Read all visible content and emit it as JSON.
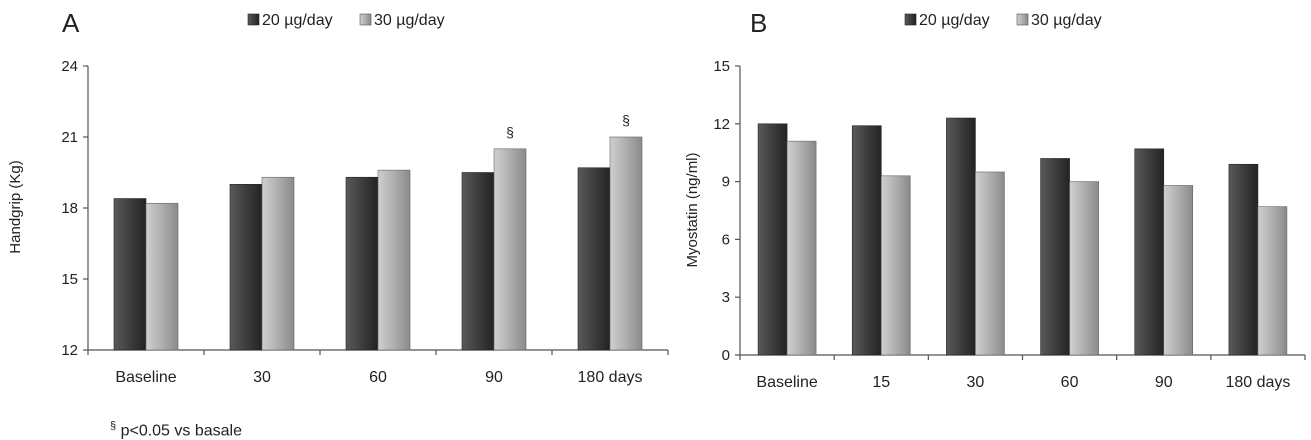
{
  "footnote": {
    "symbol": "§",
    "text": " p<0.05 vs basale"
  },
  "chart_data": [
    {
      "type": "bar",
      "panel_label": "A",
      "categories": [
        "Baseline",
        "30",
        "60",
        "90",
        "180 days"
      ],
      "series": [
        {
          "name": "20 µg/day",
          "values": [
            18.4,
            19.0,
            19.3,
            19.5,
            19.7
          ]
        },
        {
          "name": "30 µg/day",
          "values": [
            18.2,
            19.3,
            19.6,
            20.5,
            21.0
          ]
        }
      ],
      "annotations": [
        {
          "text": "§",
          "category": "90",
          "series": "30 µg/day"
        },
        {
          "text": "§",
          "category": "180 days",
          "series": "30 µg/day"
        }
      ],
      "xlabel": "",
      "ylabel": "Handgrip (Kg)",
      "ylim": [
        12,
        24
      ],
      "yticks": [
        12,
        15,
        18,
        21,
        24
      ],
      "legend": "top",
      "grid": false,
      "colors": {
        "20 µg/day": "#3d3d3d",
        "30 µg/day": "#a8a8a8"
      }
    },
    {
      "type": "bar",
      "panel_label": "B",
      "categories": [
        "Baseline",
        "15",
        "30",
        "60",
        "90",
        "180 days"
      ],
      "series": [
        {
          "name": "20 µg/day",
          "values": [
            12.0,
            11.9,
            12.3,
            10.2,
            10.7,
            9.9
          ]
        },
        {
          "name": "30 µg/day",
          "values": [
            11.1,
            9.3,
            9.5,
            9.0,
            8.8,
            7.7
          ]
        }
      ],
      "annotations": [],
      "xlabel": "",
      "ylabel": "Myostatin (ng/ml)",
      "ylim": [
        0,
        15
      ],
      "yticks": [
        0,
        3,
        6,
        9,
        12,
        15
      ],
      "legend": "top",
      "grid": false,
      "colors": {
        "20 µg/day": "#3d3d3d",
        "30 µg/day": "#a8a8a8"
      }
    }
  ]
}
